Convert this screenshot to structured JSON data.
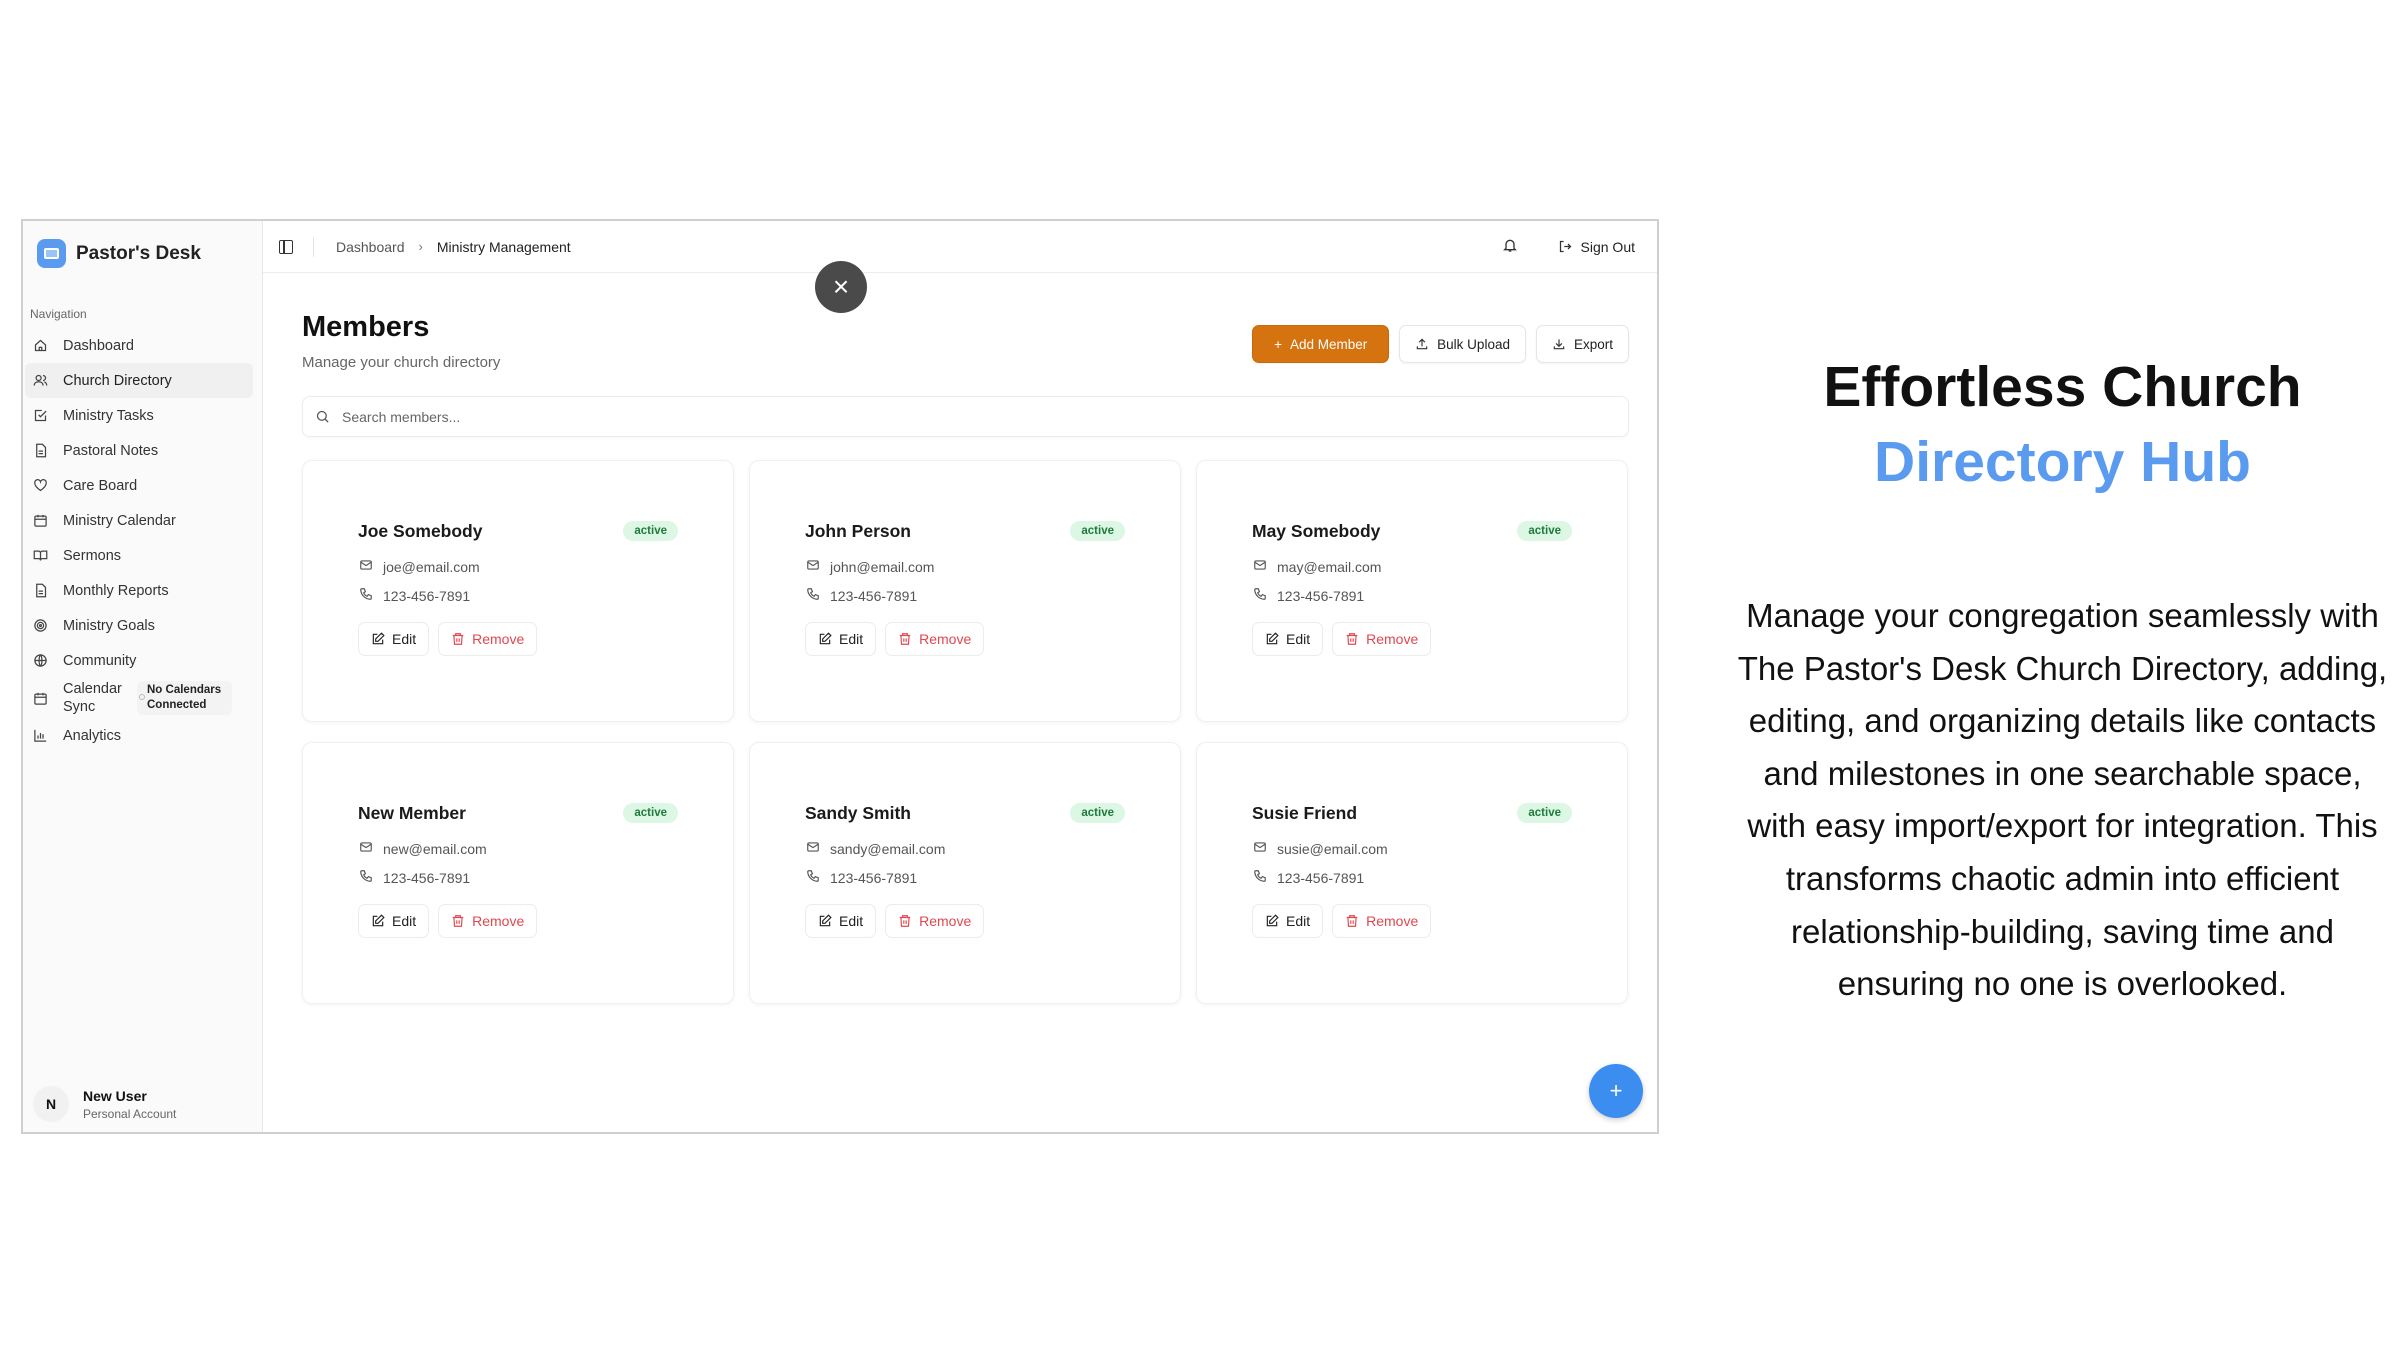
{
  "app": {
    "brand": "Pastor's Desk"
  },
  "sidebar": {
    "section_label": "Navigation",
    "items": [
      {
        "label": "Dashboard",
        "icon": "home-icon"
      },
      {
        "label": "Church Directory",
        "icon": "users-icon",
        "active": true
      },
      {
        "label": "Ministry Tasks",
        "icon": "checkbox-icon"
      },
      {
        "label": "Pastoral Notes",
        "icon": "file-icon"
      },
      {
        "label": "Care Board",
        "icon": "heart-icon"
      },
      {
        "label": "Ministry Calendar",
        "icon": "calendar-icon"
      },
      {
        "label": "Sermons",
        "icon": "book-icon"
      },
      {
        "label": "Monthly Reports",
        "icon": "file-icon"
      },
      {
        "label": "Ministry Goals",
        "icon": "target-icon"
      },
      {
        "label": "Community",
        "icon": "globe-icon"
      },
      {
        "label": "Calendar Sync",
        "icon": "calendar-icon",
        "badge": "No Calendars Connected"
      },
      {
        "label": "Analytics",
        "icon": "bar-chart-icon"
      }
    ],
    "user": {
      "initial": "N",
      "name": "New User",
      "account": "Personal Account"
    }
  },
  "header": {
    "breadcrumb": [
      "Dashboard",
      "Ministry Management"
    ],
    "sign_out": "Sign Out"
  },
  "main": {
    "title": "Members",
    "subtitle": "Manage your church directory",
    "add_member": "Add Member",
    "bulk_upload": "Bulk Upload",
    "export": "Export",
    "search_placeholder": "Search members...",
    "edit_label": "Edit",
    "remove_label": "Remove",
    "members": [
      {
        "name": "Joe Somebody",
        "status": "active",
        "email": "joe@email.com",
        "phone": "123-456-7891"
      },
      {
        "name": "John Person",
        "status": "active",
        "email": "john@email.com",
        "phone": "123-456-7891"
      },
      {
        "name": "May Somebody",
        "status": "active",
        "email": "may@email.com",
        "phone": "123-456-7891"
      },
      {
        "name": "New Member",
        "status": "active",
        "email": "new@email.com",
        "phone": "123-456-7891"
      },
      {
        "name": "Sandy Smith",
        "status": "active",
        "email": "sandy@email.com",
        "phone": "123-456-7891"
      },
      {
        "name": "Susie Friend",
        "status": "active",
        "email": "susie@email.com",
        "phone": "123-456-7891"
      }
    ]
  },
  "promo": {
    "title_line1": "Effortless Church",
    "title_line2": "Directory Hub",
    "body": "Manage your congregation seamlessly with The Pastor's Desk Church Directory, adding, editing, and organizing details like contacts and milestones in one searchable space, with easy import/export for integration. This transforms chaotic admin into efficient relationship-building, saving time and ensuring no one is overlooked."
  },
  "colors": {
    "accent_orange": "#d4730f",
    "accent_blue": "#5a9bf0",
    "badge_green": "#dcf7e4",
    "remove_red": "#e0474f"
  }
}
